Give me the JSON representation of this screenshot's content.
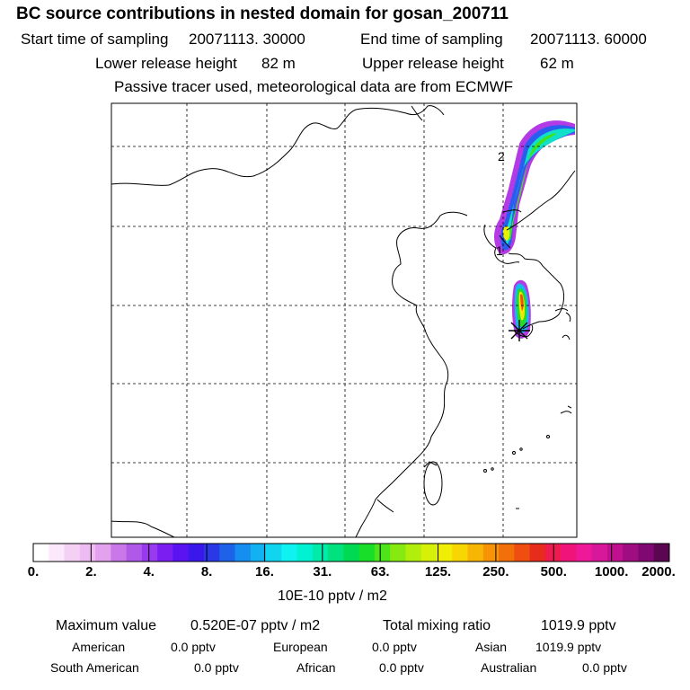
{
  "title": "BC  source contributions in nested domain for gosan_200711",
  "header": {
    "start_label": "Start time of sampling",
    "start_value": "20071113. 30000",
    "end_label": "End time of sampling",
    "end_value": "20071113. 60000",
    "lower_label": "Lower release height",
    "lower_value": "82 m",
    "upper_label": "Upper release height",
    "upper_value": "62 m",
    "tracer_note": "Passive tracer used, meteorological data are from ECMWF"
  },
  "map": {
    "contour_labels": [
      "2",
      "1"
    ],
    "receptor_marker": "star-marker"
  },
  "colorbar": {
    "ticks": [
      "0.",
      "2.",
      "4.",
      "8.",
      "16.",
      "31.",
      "63.",
      "125.",
      "250.",
      "500.",
      "1000.",
      "2000."
    ],
    "colors": [
      "#ffffff",
      "#fbe8fb",
      "#f5d0f5",
      "#eebcf2",
      "#e4a2ee",
      "#c878e8",
      "#b058e8",
      "#9a3af0",
      "#7a1ef2",
      "#5a14f2",
      "#3a18ec",
      "#2a38e6",
      "#1e62ea",
      "#168ef0",
      "#12b2f2",
      "#10d4f0",
      "#0ef2f2",
      "#00f2d2",
      "#00eaaa",
      "#00e27e",
      "#00da52",
      "#18de2a",
      "#4ee41a",
      "#86ea10",
      "#b2ee0c",
      "#d6f008",
      "#f0ee04",
      "#f8d604",
      "#f8b604",
      "#f69406",
      "#f2700a",
      "#ee4e10",
      "#e82c1c",
      "#ee1a50",
      "#f0147a",
      "#ee1898",
      "#d8189a",
      "#c01090",
      "#a00c82",
      "#800872",
      "#5a0650"
    ],
    "units": "10E-10 pptv / m2"
  },
  "stats": {
    "max_label": "Maximum value",
    "max_value": "0.520E-07 pptv / m2",
    "total_label": "Total mixing ratio",
    "total_value": "1019.9 pptv",
    "american_label": "American",
    "american_value": "0.0 pptv",
    "european_label": "European",
    "european_value": "0.0 pptv",
    "asian_label": "Asian",
    "asian_value": "1019.9 pptv",
    "south_american_label": "South American",
    "south_american_value": "0.0 pptv",
    "african_label": "African",
    "african_value": "0.0 pptv",
    "australian_label": "Australian",
    "australian_value": "0.0 pptv"
  }
}
